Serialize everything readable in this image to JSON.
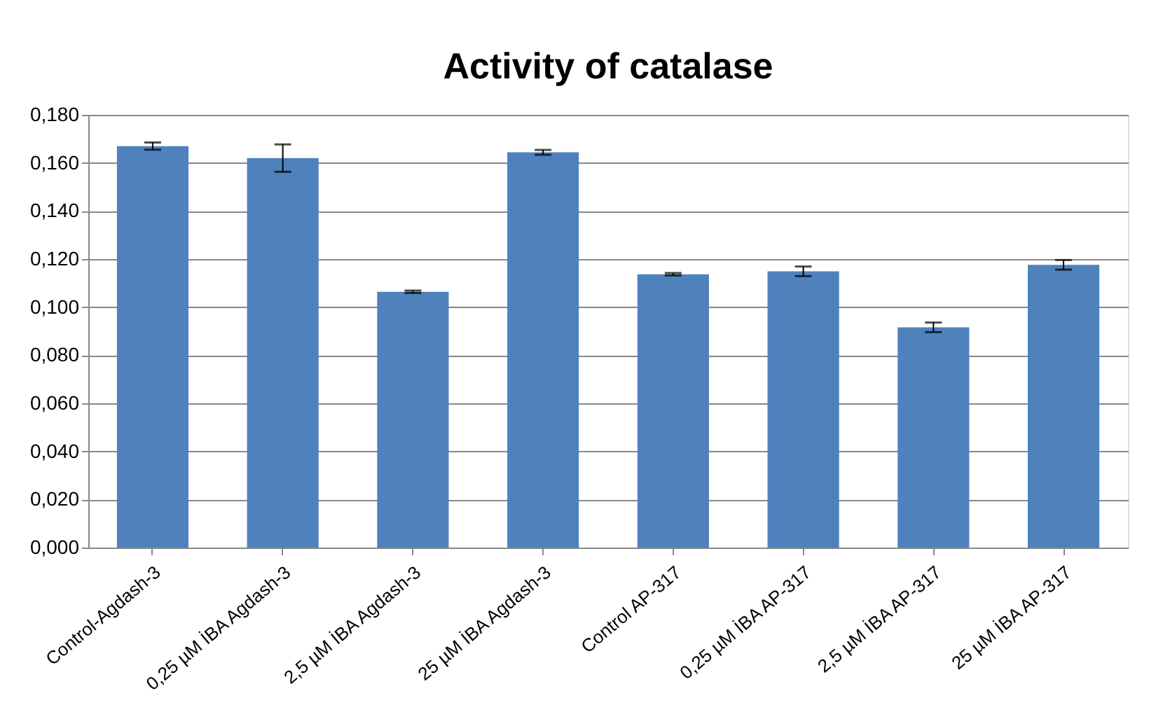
{
  "chart_data": {
    "type": "bar",
    "title": "Activity of catalase",
    "categories": [
      "Control-Agdash-3",
      "0,25 µM İBA Agdash-3",
      "2,5 µM İBA Agdash-3",
      "25 µM  İBA  Agdash-3",
      "Control AP-317",
      "0,25 µM İBA  AP-317",
      "2,5 µM İBA AP-317",
      "25 µM  İBA  AP-317"
    ],
    "values": [
      0.167,
      0.162,
      0.1064,
      0.1644,
      0.1137,
      0.1149,
      0.0916,
      0.1176
    ],
    "errors": [
      0.0015,
      0.0057,
      0.0005,
      0.001,
      0.0005,
      0.002,
      0.002,
      0.002
    ],
    "color": "#4f81bd",
    "ylim": [
      0,
      0.18
    ],
    "yticks": [
      {
        "value": 0,
        "label": "0,000"
      },
      {
        "value": 0.02,
        "label": "0,020"
      },
      {
        "value": 0.04,
        "label": "0,040"
      },
      {
        "value": 0.06,
        "label": "0,060"
      },
      {
        "value": 0.08,
        "label": "0,080"
      },
      {
        "value": 0.1,
        "label": "0,100"
      },
      {
        "value": 0.12,
        "label": "0,120"
      },
      {
        "value": 0.14,
        "label": "0,140"
      },
      {
        "value": 0.16,
        "label": "0,160"
      },
      {
        "value": 0.18,
        "label": "0,180"
      }
    ],
    "grid": "y"
  }
}
